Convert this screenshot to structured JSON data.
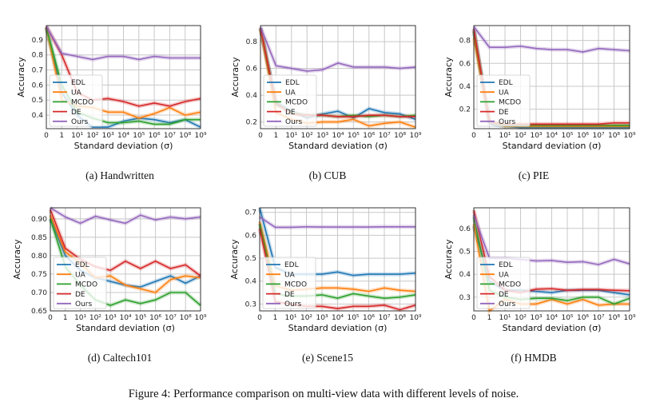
{
  "figure_caption": "Figure 4: Performance comparison on multi-view data with different levels of noise.",
  "series_colors": {
    "EDL": "#1f77b4",
    "UA": "#ff7f0e",
    "MCDO": "#2ca02c",
    "DE": "#d62728",
    "Ours": "#9467bd"
  },
  "chart_data": [
    {
      "type": "line",
      "subcaption": "(a) Handwritten",
      "xlabel": "Standard deviation (σ)",
      "ylabel": "Accuracy",
      "x": [
        "0",
        "1",
        "10¹",
        "10²",
        "10³",
        "10⁴",
        "10⁵",
        "10⁶",
        "10⁷",
        "10⁸",
        "10⁹"
      ],
      "ylim": [
        0.31,
        0.995
      ],
      "yticks": [
        "0.4",
        "0.5",
        "0.6",
        "0.7",
        "0.8",
        "0.9"
      ],
      "grid": true,
      "legend": "lower-left",
      "series": [
        {
          "name": "EDL",
          "values": [
            0.98,
            0.55,
            0.4,
            0.32,
            0.32,
            0.36,
            0.38,
            0.37,
            0.35,
            0.37,
            0.32
          ]
        },
        {
          "name": "UA",
          "values": [
            0.98,
            0.5,
            0.46,
            0.45,
            0.42,
            0.42,
            0.38,
            0.41,
            0.45,
            0.4,
            0.42
          ]
        },
        {
          "name": "MCDO",
          "values": [
            0.98,
            0.6,
            0.42,
            0.38,
            0.35,
            0.35,
            0.36,
            0.34,
            0.34,
            0.37,
            0.37
          ]
        },
        {
          "name": "DE",
          "values": [
            0.99,
            0.8,
            0.55,
            0.5,
            0.51,
            0.49,
            0.46,
            0.48,
            0.46,
            0.49,
            0.51
          ]
        },
        {
          "name": "Ours",
          "values": [
            0.99,
            0.81,
            0.79,
            0.77,
            0.79,
            0.79,
            0.77,
            0.79,
            0.78,
            0.78,
            0.78
          ]
        }
      ]
    },
    {
      "type": "line",
      "subcaption": "(b) CUB",
      "xlabel": "Standard deviation (σ)",
      "ylabel": "Accuracy",
      "x": [
        "0",
        "1",
        "10¹",
        "10²",
        "10³",
        "10⁴",
        "10⁵",
        "10⁶",
        "10⁷",
        "10⁸",
        "10⁹"
      ],
      "ylim": [
        0.15,
        0.92
      ],
      "yticks": [
        "0.2",
        "0.4",
        "0.6",
        "0.8"
      ],
      "grid": true,
      "legend": "lower-left",
      "series": [
        {
          "name": "EDL",
          "values": [
            0.9,
            0.35,
            0.28,
            0.23,
            0.26,
            0.28,
            0.23,
            0.3,
            0.27,
            0.26,
            0.22
          ]
        },
        {
          "name": "UA",
          "values": [
            0.9,
            0.27,
            0.22,
            0.19,
            0.2,
            0.2,
            0.22,
            0.17,
            0.19,
            0.2,
            0.16
          ]
        },
        {
          "name": "MCDO",
          "values": [
            0.9,
            0.33,
            0.27,
            0.25,
            0.25,
            0.24,
            0.25,
            0.24,
            0.25,
            0.24,
            0.25
          ]
        },
        {
          "name": "DE",
          "values": [
            0.9,
            0.34,
            0.26,
            0.25,
            0.25,
            0.24,
            0.24,
            0.25,
            0.25,
            0.24,
            0.24
          ]
        },
        {
          "name": "Ours",
          "values": [
            0.91,
            0.62,
            0.6,
            0.58,
            0.59,
            0.64,
            0.61,
            0.61,
            0.61,
            0.6,
            0.61
          ]
        }
      ]
    },
    {
      "type": "line",
      "subcaption": "(c) PIE",
      "xlabel": "Standard deviation (σ)",
      "ylabel": "Accuracy",
      "x": [
        "0",
        "1",
        "10¹",
        "10²",
        "10³",
        "10⁴",
        "10⁵",
        "10⁶",
        "10⁷",
        "10⁸",
        "10⁹"
      ],
      "ylim": [
        0.03,
        0.93
      ],
      "yticks": [
        "0.2",
        "0.4",
        "0.6",
        "0.8"
      ],
      "grid": true,
      "legend": "lower-left",
      "series": [
        {
          "name": "EDL",
          "values": [
            0.9,
            0.07,
            0.05,
            0.04,
            0.04,
            0.04,
            0.04,
            0.04,
            0.04,
            0.04,
            0.04
          ]
        },
        {
          "name": "UA",
          "values": [
            0.82,
            0.09,
            0.05,
            0.05,
            0.05,
            0.05,
            0.05,
            0.05,
            0.05,
            0.05,
            0.05
          ]
        },
        {
          "name": "MCDO",
          "values": [
            0.88,
            0.09,
            0.06,
            0.06,
            0.06,
            0.06,
            0.06,
            0.06,
            0.06,
            0.06,
            0.06
          ]
        },
        {
          "name": "DE",
          "values": [
            0.9,
            0.09,
            0.07,
            0.07,
            0.07,
            0.07,
            0.07,
            0.07,
            0.07,
            0.08,
            0.08
          ]
        },
        {
          "name": "Ours",
          "values": [
            0.92,
            0.74,
            0.74,
            0.75,
            0.73,
            0.72,
            0.72,
            0.7,
            0.73,
            0.72,
            0.71
          ]
        }
      ]
    },
    {
      "type": "line",
      "subcaption": "(d) Caltech101",
      "xlabel": "Standard deviation (σ)",
      "ylabel": "Accuracy",
      "x": [
        "0",
        "1",
        "10¹",
        "10²",
        "10³",
        "10⁴",
        "10⁵",
        "10⁶",
        "10⁷",
        "10⁸",
        "10⁹"
      ],
      "ylim": [
        0.65,
        0.93
      ],
      "yticks": [
        "0.65",
        "0.70",
        "0.75",
        "0.80",
        "0.85",
        "0.90"
      ],
      "grid": true,
      "legend": "lower-left",
      "series": [
        {
          "name": "EDL",
          "values": [
            0.9,
            0.8,
            0.76,
            0.74,
            0.73,
            0.72,
            0.715,
            0.73,
            0.745,
            0.725,
            0.745
          ]
        },
        {
          "name": "UA",
          "values": [
            0.91,
            0.81,
            0.78,
            0.74,
            0.745,
            0.72,
            0.71,
            0.7,
            0.735,
            0.745,
            0.74
          ]
        },
        {
          "name": "MCDO",
          "values": [
            0.9,
            0.77,
            0.72,
            0.68,
            0.665,
            0.68,
            0.67,
            0.68,
            0.7,
            0.7,
            0.665
          ]
        },
        {
          "name": "DE",
          "values": [
            0.925,
            0.82,
            0.79,
            0.77,
            0.76,
            0.785,
            0.765,
            0.785,
            0.765,
            0.775,
            0.745
          ]
        },
        {
          "name": "Ours",
          "values": [
            0.93,
            0.905,
            0.888,
            0.907,
            0.897,
            0.888,
            0.91,
            0.897,
            0.905,
            0.9,
            0.905
          ]
        }
      ]
    },
    {
      "type": "line",
      "subcaption": "(e) Scene15",
      "xlabel": "Standard deviation (σ)",
      "ylabel": "Accuracy",
      "x": [
        "0",
        "1",
        "10¹",
        "10²",
        "10³",
        "10⁴",
        "10⁵",
        "10⁶",
        "10⁷",
        "10⁸",
        "10⁹"
      ],
      "ylim": [
        0.27,
        0.72
      ],
      "yticks": [
        "0.3",
        "0.4",
        "0.5",
        "0.6",
        "0.7"
      ],
      "grid": true,
      "legend": "lower-left",
      "series": [
        {
          "name": "EDL",
          "values": [
            0.72,
            0.46,
            0.43,
            0.43,
            0.43,
            0.44,
            0.425,
            0.43,
            0.43,
            0.43,
            0.435
          ]
        },
        {
          "name": "UA",
          "values": [
            0.66,
            0.38,
            0.36,
            0.365,
            0.37,
            0.37,
            0.365,
            0.355,
            0.37,
            0.36,
            0.355
          ]
        },
        {
          "name": "MCDO",
          "values": [
            0.65,
            0.345,
            0.335,
            0.335,
            0.34,
            0.325,
            0.345,
            0.335,
            0.325,
            0.33,
            0.34
          ]
        },
        {
          "name": "DE",
          "values": [
            0.63,
            0.31,
            0.3,
            0.29,
            0.29,
            0.28,
            0.29,
            0.29,
            0.295,
            0.275,
            0.295
          ]
        },
        {
          "name": "Ours",
          "values": [
            0.68,
            0.635,
            0.635,
            0.637,
            0.636,
            0.636,
            0.636,
            0.636,
            0.637,
            0.637,
            0.637
          ]
        }
      ]
    },
    {
      "type": "line",
      "subcaption": "(f) HMDB",
      "xlabel": "Standard deviation (σ)",
      "ylabel": "Accuracy",
      "x": [
        "0",
        "1",
        "10¹",
        "10²",
        "10³",
        "10⁴",
        "10⁵",
        "10⁶",
        "10⁷",
        "10⁸",
        "10⁹"
      ],
      "ylim": [
        0.24,
        0.69
      ],
      "yticks": [
        "0.3",
        "0.4",
        "0.5",
        "0.6"
      ],
      "grid": true,
      "legend": "lower-left",
      "series": [
        {
          "name": "EDL",
          "values": [
            0.61,
            0.37,
            0.33,
            0.33,
            0.325,
            0.32,
            0.33,
            0.33,
            0.33,
            0.32,
            0.31
          ]
        },
        {
          "name": "UA",
          "values": [
            0.62,
            0.24,
            0.29,
            0.27,
            0.27,
            0.29,
            0.27,
            0.29,
            0.265,
            0.27,
            0.27
          ]
        },
        {
          "name": "MCDO",
          "values": [
            0.65,
            0.33,
            0.3,
            0.29,
            0.295,
            0.295,
            0.285,
            0.3,
            0.3,
            0.27,
            0.295
          ]
        },
        {
          "name": "DE",
          "values": [
            0.68,
            0.39,
            0.33,
            0.32,
            0.335,
            0.337,
            0.33,
            0.333,
            0.333,
            0.33,
            0.328
          ]
        },
        {
          "name": "Ours",
          "values": [
            0.66,
            0.47,
            0.47,
            0.465,
            0.458,
            0.46,
            0.452,
            0.455,
            0.442,
            0.465,
            0.445
          ]
        }
      ]
    }
  ]
}
